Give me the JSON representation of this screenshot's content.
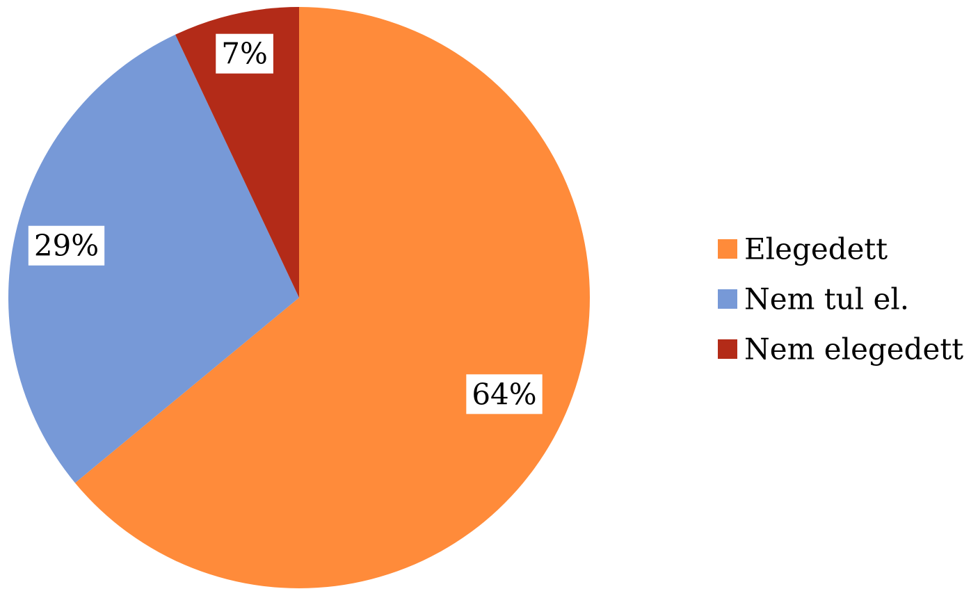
{
  "chart_data": {
    "type": "pie",
    "title": "",
    "start_angle_deg": 0,
    "direction": "clockwise",
    "legend_position": "right",
    "slices": [
      {
        "label": "Elegedett",
        "value": 64,
        "display": "64%",
        "color": "#FF8B3A"
      },
      {
        "label": "Nem tul el.",
        "value": 29,
        "display": "29%",
        "color": "#7799D7"
      },
      {
        "label": "Nem elegedett",
        "value": 7,
        "display": "7%",
        "color": "#B32B18"
      }
    ]
  }
}
